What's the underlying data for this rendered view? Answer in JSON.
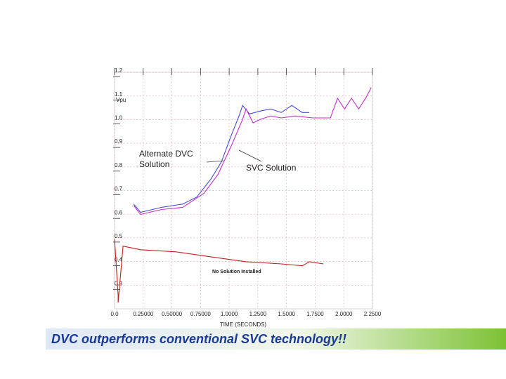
{
  "chart_data": {
    "type": "line",
    "xlabel": "TIME (SECONDS)",
    "ylabel": "Vpu",
    "xlim": [
      0,
      2.25
    ],
    "ylim": [
      0.2,
      1.2
    ],
    "xticks": [
      {
        "value": 0,
        "label": "0.0"
      },
      {
        "value": 0.25,
        "label": "0.25000"
      },
      {
        "value": 0.5,
        "label": "0.50000"
      },
      {
        "value": 0.75,
        "label": "0.75000"
      },
      {
        "value": 1,
        "label": "1.0000"
      },
      {
        "value": 1.25,
        "label": "1.2500"
      },
      {
        "value": 1.5,
        "label": "1.5000"
      },
      {
        "value": 1.75,
        "label": "1.7500"
      },
      {
        "value": 2,
        "label": "2.0000"
      },
      {
        "value": 2.25,
        "label": "2.2500"
      }
    ],
    "yticks": [
      1.2,
      1.1,
      {
        "value": 1,
        "label": "1.0"
      },
      0.9,
      0.8,
      0.7,
      0.6,
      0.5,
      0.4,
      0.3
    ],
    "grid": true,
    "annotations": [
      "Alternate DVC Solution",
      "SVC Solution",
      "No Solution Installed"
    ],
    "caption": "DVC outperforms conventional SVC technology!!",
    "series": [
      {
        "color": "#4a4ad8",
        "x": [
          0.166,
          0.227,
          0.411,
          0.595,
          0.718,
          0.84,
          0.933,
          1.012,
          1.086,
          1.117,
          1.178,
          1.27,
          1.362,
          1.454,
          1.546,
          1.638,
          1.699
        ],
        "values": [
          0.643,
          0.608,
          0.629,
          0.643,
          0.673,
          0.748,
          0.822,
          0.926,
          1.015,
          1.06,
          1.024,
          1.036,
          1.045,
          1.03,
          1.06,
          1.03,
          1.03
        ]
      },
      {
        "color": "#c030c8",
        "x": [
          0.166,
          0.227,
          0.411,
          0.595,
          0.779,
          0.902,
          1.025,
          1.117,
          1.147,
          1.209,
          1.27,
          1.362,
          1.454,
          1.577,
          1.73,
          1.883,
          1.945,
          2.006,
          2.067,
          2.129,
          2.19,
          2.239
        ],
        "values": [
          0.637,
          0.599,
          0.62,
          0.629,
          0.688,
          0.768,
          0.896,
          1.001,
          1.045,
          0.986,
          1.001,
          1.015,
          1.007,
          1.015,
          1.007,
          1.007,
          1.09,
          1.045,
          1.09,
          1.045,
          1.09,
          1.135
        ]
      },
      {
        "color": "#c02020",
        "x": [
          0,
          0.031,
          0.031,
          0.074,
          0.227,
          0.534,
          0.84,
          1.147,
          1.454,
          1.638,
          1.699,
          1.822
        ],
        "values": [
          0.495,
          0.257,
          0.227,
          0.465,
          0.45,
          0.441,
          0.42,
          0.399,
          0.39,
          0.382,
          0.399,
          0.39
        ]
      }
    ]
  }
}
